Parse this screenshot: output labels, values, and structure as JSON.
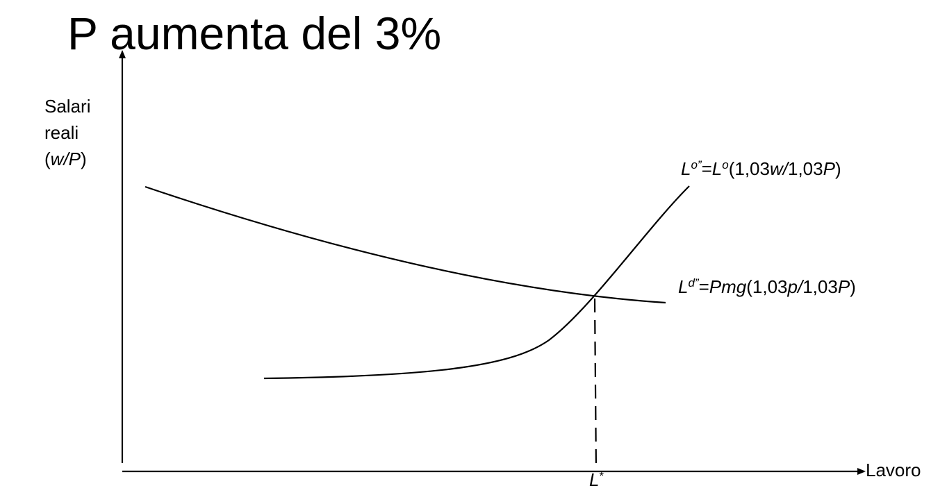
{
  "title": "P aumenta del 3%",
  "y_axis": {
    "line1": "Salari",
    "line2": "reali",
    "line3_open": "(",
    "line3_italic": "w/P",
    "line3_close": ")"
  },
  "x_axis": {
    "label": "Lavoro"
  },
  "supply_curve": {
    "base": "L",
    "sup": "o”",
    "eq": "=",
    "fn": "L",
    "fn_sup": "o",
    "args_open": "(1,03",
    "args_var1": "w/",
    "args_mid": "1,03",
    "args_var2": "P",
    "args_close": ")"
  },
  "demand_curve": {
    "base": "L",
    "sup": "d”",
    "eq": "=",
    "fn": "Pmg",
    "args_open": "(1,03",
    "args_var1": "p/",
    "args_mid": "1,03",
    "args_var2": "P",
    "args_close": ")"
  },
  "equilibrium": {
    "label": "L",
    "sup": "*"
  }
}
